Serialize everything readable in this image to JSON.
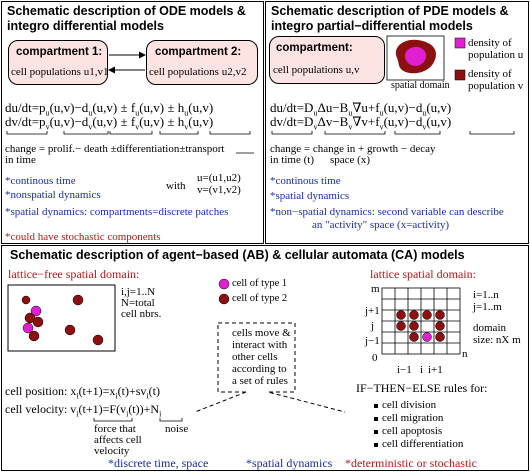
{
  "ode": {
    "title_l1": "Schematic description of ODE models &",
    "title_l2": "integro differential models",
    "compartment1_title": "compartment 1:",
    "compartment1_text": "cell populations u1,v1",
    "compartment2_title": "compartment 2:",
    "compartment2_text": "cell populations u2,v2",
    "eq1": "du/dt=p_u(u,v)−d_u(u,v) ± f_u(u,v) ± h_u(u,v)",
    "eq2": "dv/dt=p_v(u,v)−d_v(u,v) ± f_v(u,v) ± h_v(u,v)",
    "term_l1": "change = prolif.− death ±differentiation±transport",
    "term_l2": "in time",
    "note1": "*continous time",
    "note2": "*nonspatial dynamics",
    "with_label": "with",
    "with_u": "u=(u1,u2)",
    "with_v": "v=(v1,v2)",
    "note3": "*spatial dynamics: compartments=discrete patches",
    "note4": "*could have stochastic components"
  },
  "pde": {
    "title_l1": "Schematic description of PDE models &",
    "title_l2": "integro partial−differential models",
    "compartment_title": "compartment:",
    "compartment_text": "cell populations u,v",
    "spatial_domain": "spatial domain",
    "legend_u_l1": "density of",
    "legend_u_l2": "population u",
    "legend_v_l1": "density of",
    "legend_v_l2": "population v",
    "eq1": "du/dt=D_uΔu−B_u∇u+f_u(u,v)−d_u(u,v)",
    "eq2": "dv/dt=D_vΔv−B_v∇v+f_v(u,v)−d_v(u,v)",
    "term_l1": "change = change in  +  growth − decay",
    "term_l2a": "in time (t)",
    "term_l2b": "space (x)",
    "note1": "*continous time",
    "note2": "*spatial dynamics",
    "note3": "*non−spatial dynamics: second variable can describe",
    "note3b": "an \"activity\" space (x=activity)"
  },
  "ab": {
    "title": "Schematic description of agent−based (AB) & cellular automata (CA) models",
    "lattice_free": "lattice−free spatial domain:",
    "ij": "i,j=1..N",
    "N_total": "N=total",
    "cell_nbrs": "cell nbrs.",
    "xj": "x_j",
    "xi": "x_i",
    "type1": "cell of type 1",
    "type2": "cell of type 2",
    "move_l1": "cells move &",
    "move_l2": "interact with",
    "move_l3": "other cells",
    "move_l4": "according to",
    "move_l5": "a set of rules",
    "position": "cell position: x_i(t+1)=x_i(t)+sv_i(t)",
    "velocity": "cell velocity: v_i(t+1)=F(v_i(t))+N_i",
    "force_l1": "force that",
    "force_l2": "affects cell",
    "force_l3": "velocity",
    "noise": "noise",
    "lattice": "lattice spatial domain:",
    "m_top": "m",
    "jp1": "j+1",
    "j": "j",
    "jm1": "j−1",
    "zero": "0",
    "im1": "i−1",
    "i": "i",
    "ip1": "i+1",
    "n_right": "n",
    "i1n": "i=1..n",
    "j1m": "j=1..m",
    "domain": "domain",
    "size": "size: nX m",
    "rules_title": "IF−THEN−ELSE rules for:",
    "rules": [
      "cell division",
      "cell migration",
      "cell apoptosis",
      "cell differentiation"
    ],
    "foot1": "*discrete time, space",
    "foot2": "*spatial dynamics",
    "foot3": "*deterministic or stochastic"
  },
  "colors": {
    "pink_box": "#fde3e1",
    "magenta": "#e020d0",
    "dark_red": "#8c1010",
    "blue_text": "#1a2aa8",
    "red_text": "#b01818"
  }
}
